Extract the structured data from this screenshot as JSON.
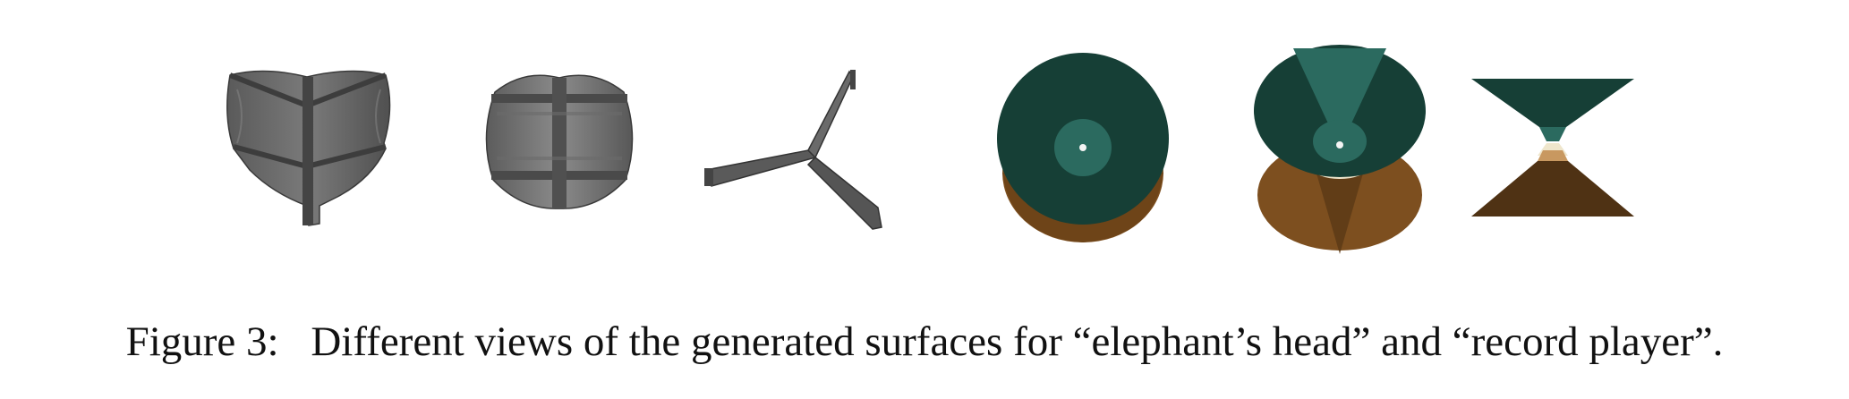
{
  "figure": {
    "caption_label": "Figure 3:",
    "caption_text": "Different views of the generated surfaces for “elephant’s head” and “record player”.",
    "panels": [
      {
        "name": "elephant-head-front-view",
        "icon": "gray-heart-shaped-surface"
      },
      {
        "name": "elephant-head-back-view",
        "icon": "gray-rounded-block-surface"
      },
      {
        "name": "elephant-head-side-view",
        "icon": "gray-tripod-branch-surface"
      },
      {
        "name": "record-player-top-view",
        "icon": "green-disc-over-brown-surface"
      },
      {
        "name": "record-player-tilted-view",
        "icon": "green-cone-over-brown-cone-surface"
      },
      {
        "name": "record-player-side-view",
        "icon": "hourglass-double-cone-surface"
      }
    ],
    "colors": {
      "gray_dark": "#4a4a4a",
      "gray_mid": "#6e6e6e",
      "green_dark": "#163f36",
      "green_teal": "#2b6a5f",
      "brown": "#7d4f1f",
      "brown_dark": "#4f3214",
      "cream": "#efe6cc"
    }
  }
}
